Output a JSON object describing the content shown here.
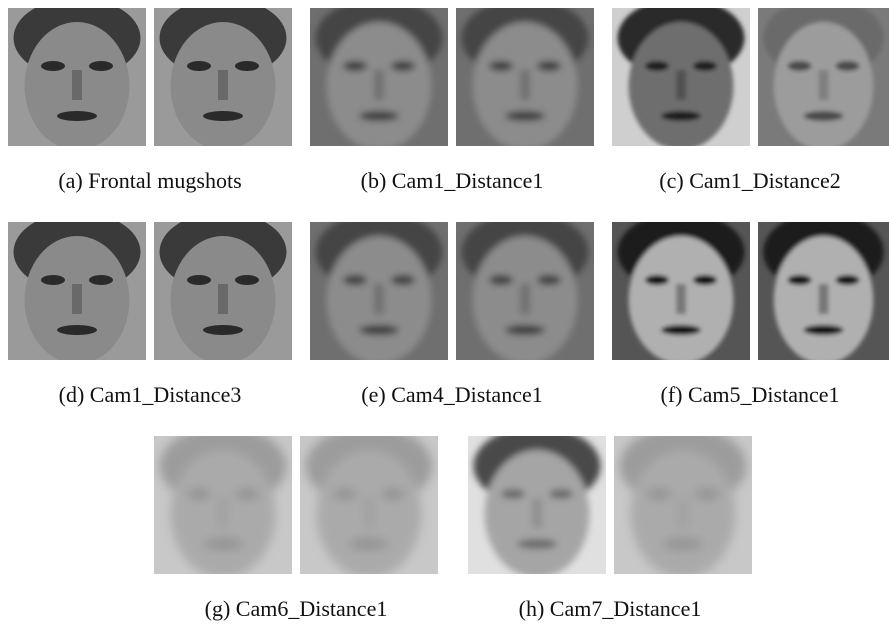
{
  "figure": {
    "panels": [
      {
        "caption": "(a) Frontal mugshots"
      },
      {
        "caption": "(b) Cam1_Distance1"
      },
      {
        "caption": "(c) Cam1_Distance2"
      },
      {
        "caption": "(d) Cam1_Distance3"
      },
      {
        "caption": "(e) Cam4_Distance1"
      },
      {
        "caption": "(f) Cam5_Distance1"
      },
      {
        "caption": "(g) Cam6_Distance1"
      },
      {
        "caption": "(h) Cam7_Distance1"
      }
    ]
  }
}
